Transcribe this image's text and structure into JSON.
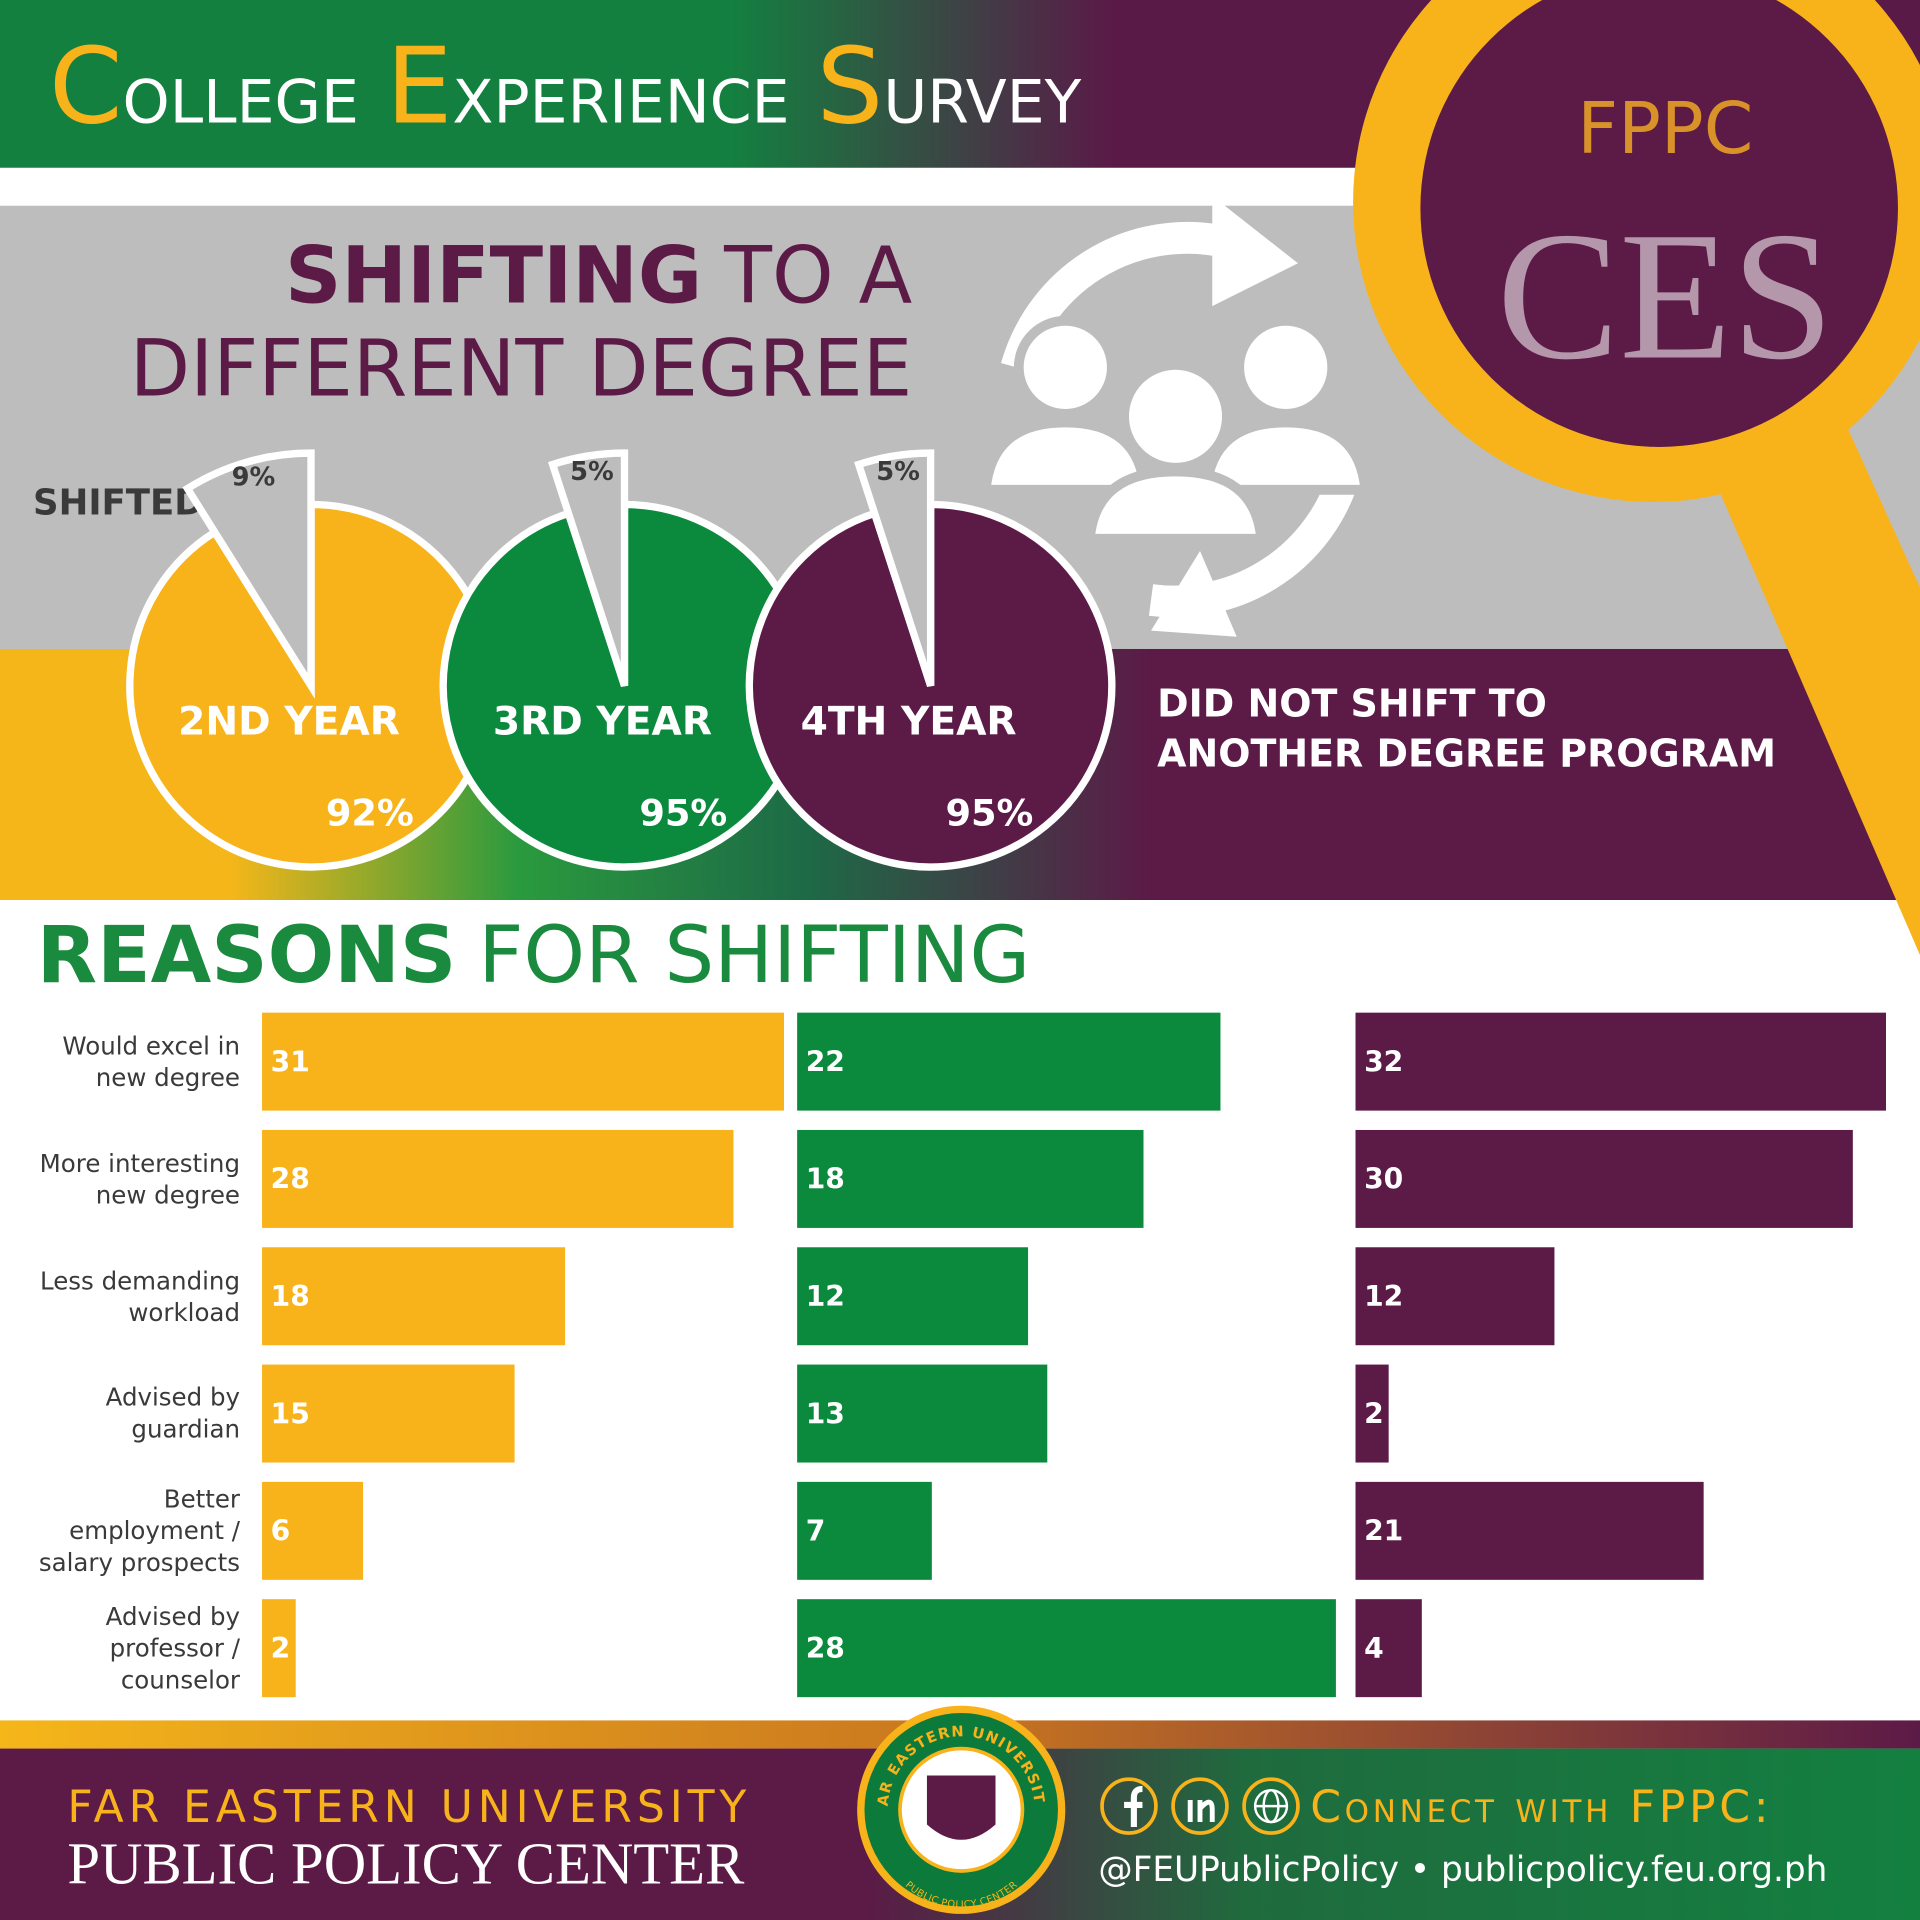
{
  "header": {
    "title_words": [
      "College",
      "Experience",
      "Survey"
    ],
    "badge_top": "FPPC",
    "badge_main": "CES"
  },
  "shifting": {
    "title_bold": "SHIFTING",
    "title_rest": "TO A",
    "title_line_2": "DIFFERENT DEGREE",
    "shifted_label": "SHIFTED",
    "not_shifted_lines": [
      "DID NOT SHIFT TO",
      "ANOTHER DEGREE PROGRAM"
    ]
  },
  "reasons": {
    "title_bold": "REASONS",
    "title_rest": "FOR SHIFTING"
  },
  "chart_data": [
    {
      "type": "pie",
      "title": "2ND YEAR",
      "values": [
        9,
        92
      ],
      "value_labels": [
        "9%",
        "92%"
      ],
      "colors": [
        "#bdbdbd",
        "#f8b31b"
      ]
    },
    {
      "type": "pie",
      "title": "3RD YEAR",
      "values": [
        5,
        95
      ],
      "value_labels": [
        "5%",
        "95%"
      ],
      "colors": [
        "#bdbdbd",
        "#0b8a3e"
      ]
    },
    {
      "type": "pie",
      "title": "4TH YEAR",
      "values": [
        5,
        95
      ],
      "value_labels": [
        "5%",
        "95%"
      ],
      "colors": [
        "#bdbdbd",
        "#5c1a47"
      ]
    },
    {
      "type": "bar",
      "orientation": "horizontal",
      "categories": [
        "Would excel in new degree",
        "More interesting new degree",
        "Less demanding workload",
        "Advised by guardian",
        "Better employment / salary prospects",
        "Advised by professor / counselor"
      ],
      "values": [
        31,
        28,
        18,
        15,
        6,
        2
      ],
      "color": "#f8b31b",
      "xlim": [
        0,
        32
      ]
    },
    {
      "type": "bar",
      "orientation": "horizontal",
      "values": [
        22,
        18,
        12,
        13,
        7,
        28
      ],
      "color": "#0b8a3e",
      "xlim": [
        0,
        28
      ]
    },
    {
      "type": "bar",
      "orientation": "horizontal",
      "values": [
        32,
        30,
        12,
        2,
        21,
        4
      ],
      "color": "#5c1a47",
      "xlim": [
        0,
        32.5
      ]
    }
  ],
  "footer": {
    "org_line_1": "FAR EASTERN UNIVERSITY",
    "org_line_2": "PUBLIC POLICY CENTER",
    "logo_top": "FAR EASTERN UNIVERSITY",
    "logo_bottom": "PUBLIC POLICY CENTER",
    "connect": "Connect with FPPC:",
    "social": "@FEUPublicPolicy • publicpolicy.feu.org.ph"
  }
}
